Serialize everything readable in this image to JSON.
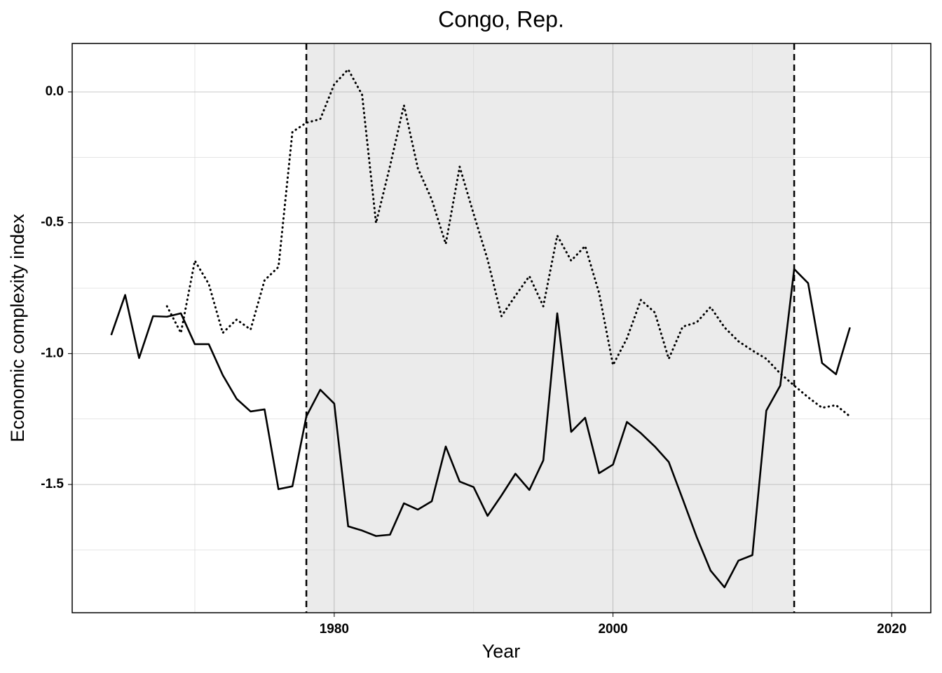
{
  "chart_data": {
    "type": "line",
    "title": "Congo, Rep.",
    "xlabel": "Year",
    "ylabel": "Economic complexity index",
    "x": [
      1964,
      1965,
      1966,
      1967,
      1968,
      1969,
      1970,
      1971,
      1972,
      1973,
      1974,
      1975,
      1976,
      1977,
      1978,
      1979,
      1980,
      1981,
      1982,
      1983,
      1984,
      1985,
      1986,
      1987,
      1988,
      1989,
      1990,
      1991,
      1992,
      1993,
      1994,
      1995,
      1996,
      1997,
      1998,
      1999,
      2000,
      2001,
      2002,
      2003,
      2004,
      2005,
      2006,
      2007,
      2008,
      2009,
      2010,
      2011,
      2012,
      2013,
      2014,
      2015,
      2016,
      2017
    ],
    "series": [
      {
        "color": "#000000",
        "style": "solid",
        "values": [
          -0.929,
          -0.776,
          -1.017,
          -0.857,
          -0.859,
          -0.846,
          -0.964,
          -0.964,
          -1.082,
          -1.173,
          -1.221,
          -1.213,
          -1.518,
          -1.507,
          -1.24,
          -1.138,
          -1.191,
          -1.66,
          -1.676,
          -1.697,
          -1.692,
          -1.572,
          -1.596,
          -1.564,
          -1.355,
          -1.489,
          -1.51,
          -1.62,
          -1.542,
          -1.459,
          -1.521,
          -1.408,
          -0.846,
          -1.299,
          -1.245,
          -1.457,
          -1.424,
          -1.261,
          -1.304,
          -1.355,
          -1.414,
          -1.556,
          -1.7,
          -1.829,
          -1.893,
          -1.791,
          -1.77,
          -1.218,
          -1.122,
          -0.677,
          -0.731,
          -1.036,
          -1.079,
          -0.9
        ]
      },
      {
        "color": "#000000",
        "style": "dotted",
        "values": [
          null,
          null,
          null,
          null,
          -0.819,
          -0.921,
          -0.645,
          -0.734,
          -0.921,
          -0.87,
          -0.908,
          -0.72,
          -0.669,
          -0.153,
          -0.118,
          -0.104,
          0.029,
          0.086,
          -0.011,
          -0.501,
          -0.284,
          -0.051,
          -0.292,
          -0.412,
          -0.581,
          -0.286,
          -0.466,
          -0.64,
          -0.857,
          -0.779,
          -0.704,
          -0.819,
          -0.549,
          -0.645,
          -0.589,
          -0.768,
          -1.044,
          -0.942,
          -0.795,
          -0.843,
          -1.02,
          -0.897,
          -0.881,
          -0.822,
          -0.9,
          -0.953,
          -0.988,
          -1.02,
          -1.076,
          -1.122,
          -1.167,
          -1.207,
          -1.197,
          -1.24
        ]
      }
    ],
    "shade": [
      1978,
      2013
    ],
    "shade_color": "#ebebeb",
    "xlim": [
      1961.2,
      2022.8
    ],
    "ylim": [
      -1.99,
      0.185
    ],
    "xticks": [
      1980,
      2000,
      2020
    ],
    "xminor": [
      1970,
      1990,
      2010
    ],
    "yticks": [
      {
        "value": 0,
        "label": "0.0"
      },
      {
        "value": -0.5,
        "label": "-0.5"
      },
      {
        "value": -1,
        "label": "-1.0"
      },
      {
        "value": -1.5,
        "label": "-1.5"
      }
    ],
    "yminor": [
      -0.25,
      -0.75,
      -1.25,
      -1.75
    ],
    "grid": true
  }
}
